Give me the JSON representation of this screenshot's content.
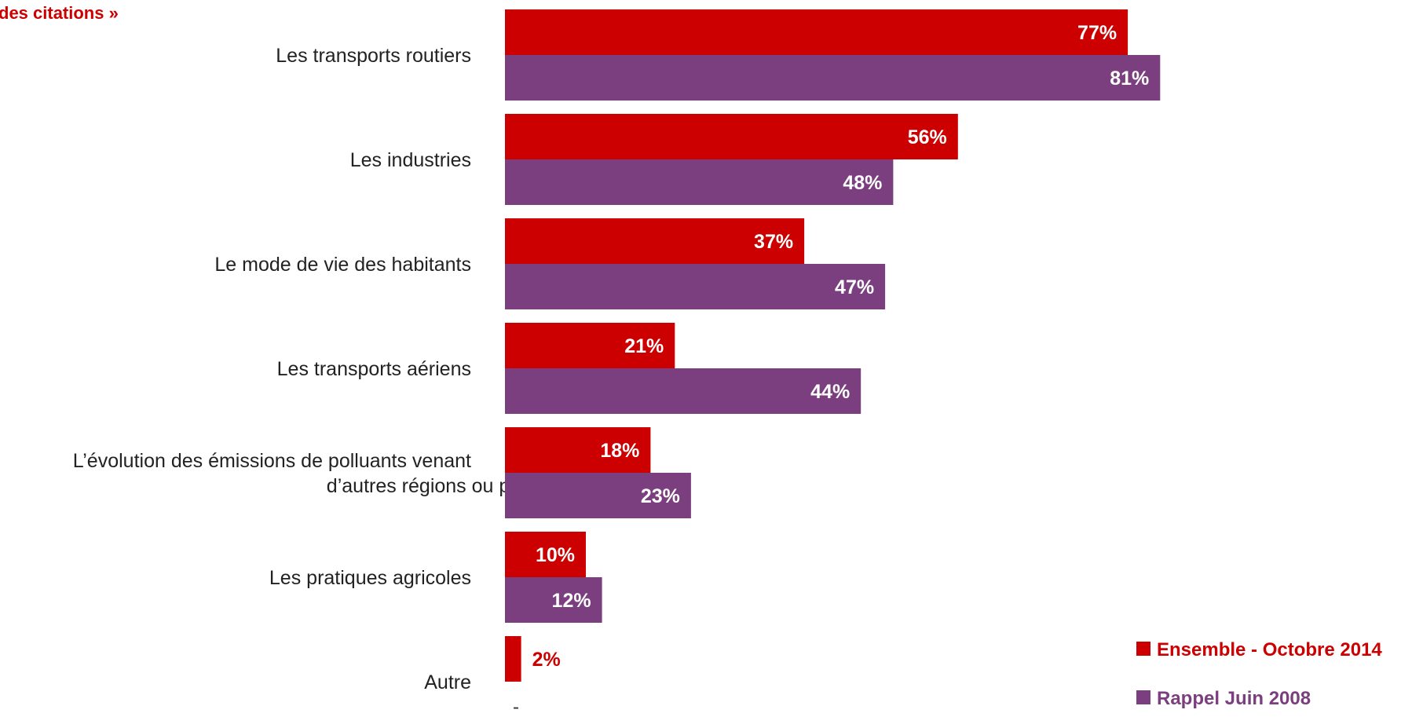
{
  "colors": {
    "series1": "#cc0000",
    "series2": "#7b3f7f",
    "title": "#cc0000",
    "legend1": "#cc0000",
    "legend2": "#7b3f7f"
  },
  "chart_data": {
    "type": "bar",
    "orientation": "horizontal",
    "title": "des citations »",
    "categories": [
      [
        "Les transports routiers"
      ],
      [
        "Les industries"
      ],
      [
        "Le mode de vie des habitants"
      ],
      [
        "Les transports aériens"
      ],
      [
        "L’évolution des émissions de polluants venant",
        "d’autres régions ou pays"
      ],
      [
        "Les pratiques agricoles"
      ],
      [
        "Autre"
      ]
    ],
    "series": [
      {
        "name": "Ensemble - Octobre 2014",
        "values": [
          77,
          56,
          37,
          21,
          18,
          10,
          2
        ],
        "labels": [
          "77%",
          "56%",
          "37%",
          "21%",
          "18%",
          "10%",
          "2%"
        ]
      },
      {
        "name": "Rappel Juin 2008",
        "values": [
          81,
          48,
          47,
          44,
          23,
          12,
          null
        ],
        "labels": [
          "81%",
          "48%",
          "47%",
          "44%",
          "23%",
          "12%",
          "-"
        ]
      }
    ],
    "xlim": [
      0,
      100
    ],
    "grid": false,
    "legend_position": "bottom-right"
  }
}
